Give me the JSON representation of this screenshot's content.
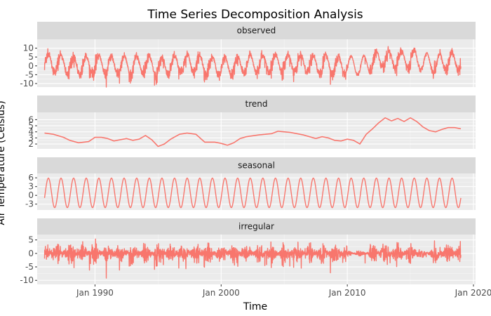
{
  "chart_data": {
    "type": "line",
    "title": "Time Series Decomposition Analysis",
    "xlabel": "Time",
    "ylabel": "Air Temperature (Celsius)",
    "x_ticks": [
      "Jan 1990",
      "Jan 2000",
      "Jan 2010",
      "Jan 2020"
    ],
    "x_range": [
      "1985-06",
      "2020-03"
    ],
    "data_start": "1986-01",
    "data_end": "2019-01",
    "line_color": "#F8766D",
    "panel_background": "#EBEBEB",
    "strip_background": "#D9D9D9",
    "grid": true,
    "panels": [
      {
        "name": "observed",
        "ylim": [
          -12,
          15
        ],
        "y_ticks": [
          -10,
          -5,
          0,
          5,
          10
        ],
        "description_values": {
          "seasonal_amplitude": 7.5,
          "noise_range": [
            -10,
            11
          ]
        }
      },
      {
        "name": "trend",
        "ylim": [
          1.2,
          7.2
        ],
        "y_ticks": [
          2,
          3,
          4,
          5,
          6
        ],
        "values_by_year": {
          "x": [
            1986.0,
            1986.7,
            1987.5,
            1988.0,
            1988.7,
            1989.5,
            1990.0,
            1990.5,
            1991.0,
            1991.5,
            1992.0,
            1992.5,
            1993.0,
            1993.5,
            1994.0,
            1994.5,
            1995.0,
            1995.5,
            1996.0,
            1996.7,
            1997.3,
            1998.0,
            1998.7,
            1999.5,
            2000.0,
            2000.5,
            2001.0,
            2001.5,
            2002.0,
            2003.0,
            2004.0,
            2004.5,
            2005.5,
            2006.5,
            2007.5,
            2008.0,
            2008.5,
            2009.0,
            2009.5,
            2010.0,
            2010.5,
            2011.0,
            2011.5,
            2012.0,
            2012.5,
            2013.0,
            2013.5,
            2014.0,
            2014.5,
            2015.0,
            2015.5,
            2016.0,
            2016.5,
            2017.0,
            2017.5,
            2018.0,
            2018.5,
            2019.0
          ],
          "y": [
            3.8,
            3.6,
            3.1,
            2.6,
            2.2,
            2.4,
            3.1,
            3.1,
            2.9,
            2.5,
            2.7,
            2.9,
            2.6,
            2.8,
            3.4,
            2.7,
            1.6,
            2.0,
            2.8,
            3.6,
            3.8,
            3.6,
            2.3,
            2.3,
            2.1,
            1.8,
            2.2,
            2.9,
            3.2,
            3.5,
            3.7,
            4.1,
            3.9,
            3.5,
            2.9,
            3.2,
            3.0,
            2.6,
            2.5,
            2.8,
            2.6,
            2.0,
            3.6,
            4.5,
            5.5,
            6.3,
            5.8,
            6.2,
            5.7,
            6.3,
            5.7,
            4.8,
            4.2,
            4.0,
            4.4,
            4.7,
            4.7,
            4.5
          ]
        }
      },
      {
        "name": "seasonal",
        "ylim": [
          -5,
          7.5
        ],
        "y_ticks": [
          -3,
          0,
          3,
          6
        ],
        "description_values": {
          "max": 5.9,
          "min": -4.2,
          "period_years": 1
        }
      },
      {
        "name": "irregular",
        "ylim": [
          -11.5,
          7
        ],
        "y_ticks": [
          -10,
          -5,
          0,
          5
        ],
        "description_values": {
          "range": [
            -10,
            6
          ]
        }
      }
    ]
  }
}
